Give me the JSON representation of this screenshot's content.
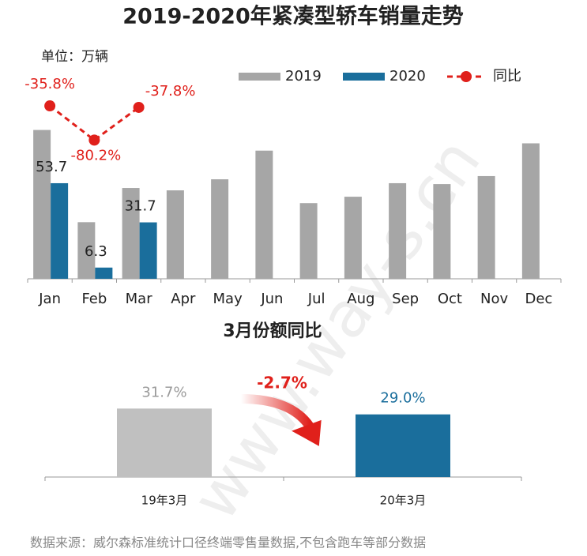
{
  "chart_data": [
    {
      "type": "bar",
      "title": "2019-2020年紧凑型轿车销量走势",
      "unit_label": "单位：万辆",
      "categories": [
        "Jan",
        "Feb",
        "Mar",
        "Apr",
        "May",
        "Jun",
        "Jul",
        "Aug",
        "Sep",
        "Oct",
        "Nov",
        "Dec"
      ],
      "series": [
        {
          "name": "2019",
          "color": "#a6a6a6",
          "values": [
            83.6,
            31.8,
            51.0,
            49.7,
            55.9,
            72.0,
            42.5,
            46.1,
            53.7,
            53.2,
            57.7,
            76.1
          ]
        },
        {
          "name": "2020",
          "color": "#1a6e9c",
          "values": [
            53.7,
            6.3,
            31.7,
            null,
            null,
            null,
            null,
            null,
            null,
            null,
            null,
            null
          ]
        },
        {
          "name": "同比",
          "color": "#e0201b",
          "axis": "y2",
          "values": [
            -35.8,
            -80.2,
            -37.8,
            null,
            null,
            null,
            null,
            null,
            null,
            null,
            null,
            null
          ],
          "value_labels": [
            "-35.8%",
            "-80.2%",
            "-37.8%",
            null,
            null,
            null,
            null,
            null,
            null,
            null,
            null,
            null
          ]
        }
      ],
      "ylim": [
        0,
        130
      ],
      "y2lim": [
        -260,
        40
      ],
      "legend": "top-right"
    },
    {
      "type": "bar",
      "title": "3月份额同比",
      "categories": [
        "19年3月",
        "20年3月"
      ],
      "values": [
        31.7,
        29.0
      ],
      "value_labels": [
        "31.7%",
        "29.0%"
      ],
      "colors": [
        "#c0c0c0",
        "#1a6e9c"
      ],
      "label_colors": [
        "#9a9a9a",
        "#1a6e9c"
      ],
      "annotation": "-2.7%",
      "annotation_color": "#e0201b",
      "ylim": [
        0,
        49
      ]
    }
  ],
  "source": "数据来源：威尔森标准统计口径终端零售量数据,不包含跑车等部分数据",
  "watermark": "www.way-s.cn"
}
